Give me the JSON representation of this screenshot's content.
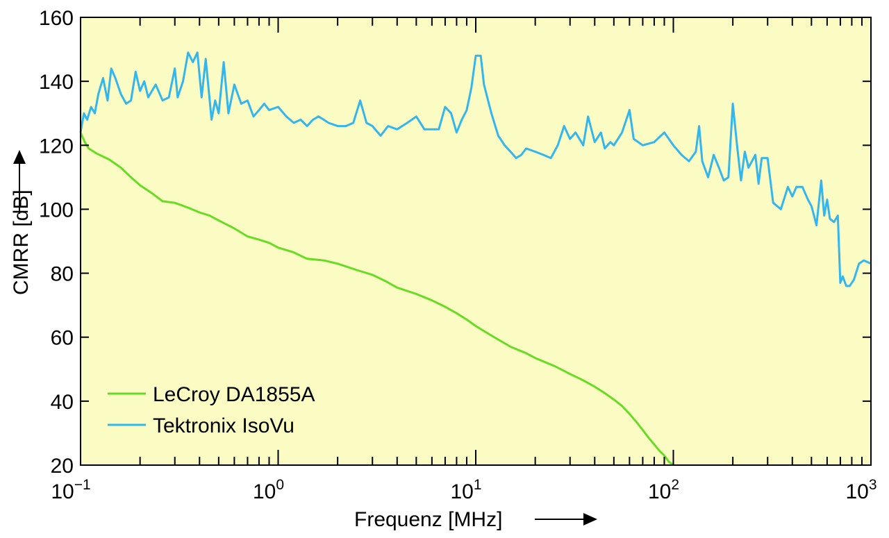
{
  "chart_data": {
    "type": "line",
    "xlabel": "Frequenz [MHz]",
    "ylabel": "CMRR [dB]",
    "xscale": "log",
    "xlim": [
      0.1,
      1000
    ],
    "ylim": [
      20,
      160
    ],
    "grid": false,
    "legend_position": "bottom-left",
    "plot_background": "#fbfbc4",
    "x_ticks": [
      {
        "value": 0.1,
        "base": "10",
        "exp": "−1"
      },
      {
        "value": 1,
        "base": "10",
        "exp": "0"
      },
      {
        "value": 10,
        "base": "10",
        "exp": "1"
      },
      {
        "value": 100,
        "base": "10",
        "exp": "2"
      },
      {
        "value": 1000,
        "base": "10",
        "exp": "3"
      }
    ],
    "y_ticks": [
      "20",
      "40",
      "60",
      "80",
      "100",
      "120",
      "140",
      "160"
    ],
    "series": [
      {
        "name": "LeCroy DA1855A",
        "color": "#66dd22",
        "points": [
          [
            0.1,
            124
          ],
          [
            0.105,
            121
          ],
          [
            0.11,
            119
          ],
          [
            0.12,
            117.5
          ],
          [
            0.14,
            115.5
          ],
          [
            0.16,
            113
          ],
          [
            0.18,
            110
          ],
          [
            0.2,
            107.5
          ],
          [
            0.23,
            105
          ],
          [
            0.26,
            102.5
          ],
          [
            0.3,
            102
          ],
          [
            0.35,
            100.5
          ],
          [
            0.4,
            99
          ],
          [
            0.45,
            98
          ],
          [
            0.5,
            96.5
          ],
          [
            0.6,
            94
          ],
          [
            0.7,
            91.5
          ],
          [
            0.8,
            90.5
          ],
          [
            0.9,
            89.5
          ],
          [
            1.0,
            88
          ],
          [
            1.2,
            86.5
          ],
          [
            1.4,
            84.5
          ],
          [
            1.7,
            84
          ],
          [
            2.0,
            83
          ],
          [
            2.5,
            81
          ],
          [
            3.0,
            79.5
          ],
          [
            3.5,
            77.5
          ],
          [
            4.0,
            75.5
          ],
          [
            5.0,
            73.5
          ],
          [
            6.0,
            71.5
          ],
          [
            7.0,
            69.5
          ],
          [
            8.0,
            67.5
          ],
          [
            9.0,
            65.5
          ],
          [
            10.0,
            63.5
          ],
          [
            12.0,
            60.5
          ],
          [
            15.0,
            57
          ],
          [
            18.0,
            55
          ],
          [
            20.0,
            53.5
          ],
          [
            25.0,
            51
          ],
          [
            30.0,
            48.5
          ],
          [
            35.0,
            46.5
          ],
          [
            40.0,
            44.5
          ],
          [
            45.0,
            42.5
          ],
          [
            50.0,
            40.5
          ],
          [
            55.0,
            38.5
          ],
          [
            60.0,
            36
          ],
          [
            65.0,
            33.5
          ],
          [
            70.0,
            31
          ],
          [
            75.0,
            28.5
          ],
          [
            80.0,
            26.5
          ],
          [
            85.0,
            24.5
          ],
          [
            90.0,
            23
          ],
          [
            95.0,
            21
          ],
          [
            100.0,
            20
          ]
        ]
      },
      {
        "name": "Tektronix IsoVu",
        "color": "#33b5ee",
        "points": [
          [
            0.1,
            124
          ],
          [
            0.104,
            130
          ],
          [
            0.108,
            128
          ],
          [
            0.113,
            132
          ],
          [
            0.118,
            130
          ],
          [
            0.123,
            136
          ],
          [
            0.13,
            141
          ],
          [
            0.137,
            134
          ],
          [
            0.143,
            144
          ],
          [
            0.15,
            141
          ],
          [
            0.16,
            136
          ],
          [
            0.17,
            133
          ],
          [
            0.18,
            134
          ],
          [
            0.19,
            143
          ],
          [
            0.2,
            137
          ],
          [
            0.21,
            140
          ],
          [
            0.22,
            135
          ],
          [
            0.24,
            139
          ],
          [
            0.26,
            134
          ],
          [
            0.28,
            135
          ],
          [
            0.3,
            144
          ],
          [
            0.31,
            135
          ],
          [
            0.33,
            140
          ],
          [
            0.35,
            149
          ],
          [
            0.37,
            146
          ],
          [
            0.39,
            149
          ],
          [
            0.41,
            135
          ],
          [
            0.43,
            147
          ],
          [
            0.46,
            128
          ],
          [
            0.48,
            134
          ],
          [
            0.5,
            130
          ],
          [
            0.53,
            146
          ],
          [
            0.56,
            130
          ],
          [
            0.6,
            139
          ],
          [
            0.65,
            133
          ],
          [
            0.7,
            134
          ],
          [
            0.75,
            129
          ],
          [
            0.8,
            131
          ],
          [
            0.85,
            133
          ],
          [
            0.9,
            131
          ],
          [
            1.0,
            132
          ],
          [
            1.1,
            129
          ],
          [
            1.2,
            127
          ],
          [
            1.3,
            128
          ],
          [
            1.4,
            126
          ],
          [
            1.5,
            128
          ],
          [
            1.6,
            129
          ],
          [
            1.7,
            128
          ],
          [
            1.8,
            127
          ],
          [
            2.0,
            126
          ],
          [
            2.2,
            126
          ],
          [
            2.4,
            127
          ],
          [
            2.6,
            134
          ],
          [
            2.8,
            127
          ],
          [
            3.0,
            126
          ],
          [
            3.3,
            123
          ],
          [
            3.6,
            126
          ],
          [
            4.0,
            125
          ],
          [
            4.5,
            127
          ],
          [
            5.0,
            129
          ],
          [
            5.5,
            125
          ],
          [
            6.0,
            125
          ],
          [
            6.5,
            125
          ],
          [
            7.0,
            132
          ],
          [
            7.5,
            130
          ],
          [
            8.0,
            124
          ],
          [
            8.5,
            128
          ],
          [
            9.0,
            131
          ],
          [
            9.5,
            138
          ],
          [
            10.0,
            148
          ],
          [
            10.6,
            148
          ],
          [
            11.0,
            139
          ],
          [
            12.0,
            130
          ],
          [
            13.0,
            123
          ],
          [
            14.0,
            120
          ],
          [
            15.0,
            118
          ],
          [
            16.0,
            116
          ],
          [
            17.0,
            117
          ],
          [
            18.0,
            119
          ],
          [
            20.0,
            118
          ],
          [
            22.0,
            117
          ],
          [
            24.0,
            116
          ],
          [
            26.0,
            120
          ],
          [
            28.0,
            126
          ],
          [
            30.0,
            122
          ],
          [
            32.0,
            124
          ],
          [
            35.0,
            120
          ],
          [
            37.0,
            129
          ],
          [
            40.0,
            121
          ],
          [
            43.0,
            124
          ],
          [
            45.0,
            119
          ],
          [
            48.0,
            121
          ],
          [
            50.0,
            120
          ],
          [
            55.0,
            124
          ],
          [
            60.0,
            131
          ],
          [
            63.0,
            122
          ],
          [
            70.0,
            120
          ],
          [
            80.0,
            121
          ],
          [
            90.0,
            124
          ],
          [
            100.0,
            120
          ],
          [
            110.0,
            117
          ],
          [
            120.0,
            115
          ],
          [
            130.0,
            118
          ],
          [
            135.0,
            126
          ],
          [
            140.0,
            115
          ],
          [
            150.0,
            110
          ],
          [
            160.0,
            117
          ],
          [
            170.0,
            113
          ],
          [
            180.0,
            109
          ],
          [
            190.0,
            110
          ],
          [
            200.0,
            133
          ],
          [
            210.0,
            120
          ],
          [
            220.0,
            109
          ],
          [
            230.0,
            118
          ],
          [
            240.0,
            113
          ],
          [
            260.0,
            117
          ],
          [
            270.0,
            108
          ],
          [
            280.0,
            116
          ],
          [
            300.0,
            116
          ],
          [
            320.0,
            102
          ],
          [
            350.0,
            100
          ],
          [
            380.0,
            107
          ],
          [
            400.0,
            104
          ],
          [
            420.0,
            107
          ],
          [
            450.0,
            107
          ],
          [
            480.0,
            103
          ],
          [
            500.0,
            101
          ],
          [
            530.0,
            95
          ],
          [
            560.0,
            109
          ],
          [
            580.0,
            98
          ],
          [
            600.0,
            103
          ],
          [
            620.0,
            97
          ],
          [
            650.0,
            96
          ],
          [
            680.0,
            98
          ],
          [
            700.0,
            77
          ],
          [
            720.0,
            79
          ],
          [
            750.0,
            76
          ],
          [
            780.0,
            76
          ],
          [
            820.0,
            78
          ],
          [
            870.0,
            83
          ],
          [
            920.0,
            84
          ],
          [
            1000.0,
            83
          ]
        ]
      }
    ]
  }
}
